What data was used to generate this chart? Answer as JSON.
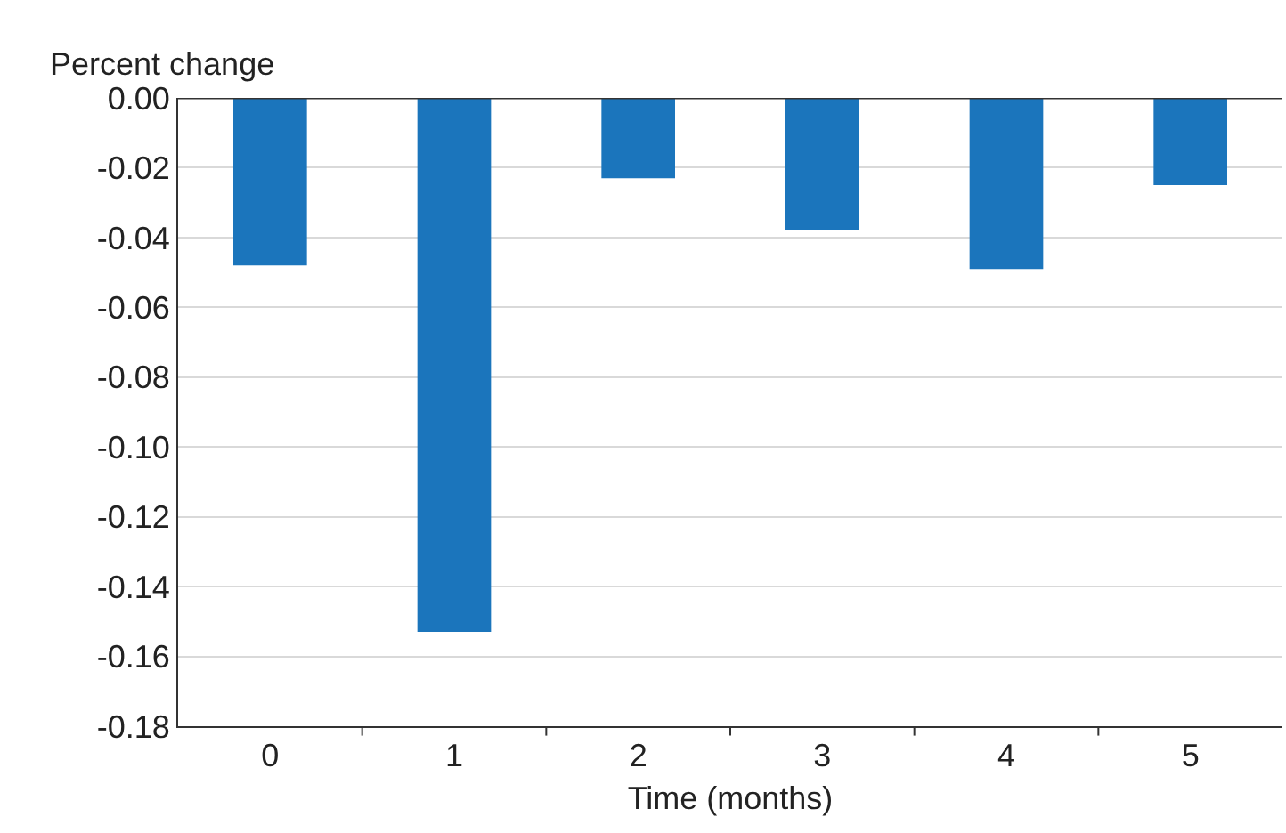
{
  "chart_data": {
    "type": "bar",
    "ylabel": "Percent change",
    "xlabel": "Time (months)",
    "categories": [
      "0",
      "1",
      "2",
      "3",
      "4",
      "5"
    ],
    "values": [
      -0.048,
      -0.153,
      -0.023,
      -0.038,
      -0.049,
      -0.025
    ],
    "color": "#1b75bc",
    "ylim": [
      -0.18,
      0.0
    ],
    "yticks": [
      {
        "value": 0,
        "label": "0.00"
      },
      {
        "value": -0.02,
        "label": "-0.02"
      },
      {
        "value": -0.04,
        "label": "-0.04"
      },
      {
        "value": -0.06,
        "label": "-0.06"
      },
      {
        "value": -0.08,
        "label": "-0.08"
      },
      {
        "value": -0.1,
        "label": "-0.10"
      },
      {
        "value": -0.12,
        "label": "-0.12"
      },
      {
        "value": -0.14,
        "label": "-0.14"
      },
      {
        "value": -0.16,
        "label": "-0.16"
      },
      {
        "value": -0.18,
        "label": "-0.18"
      }
    ],
    "grid": "y"
  }
}
